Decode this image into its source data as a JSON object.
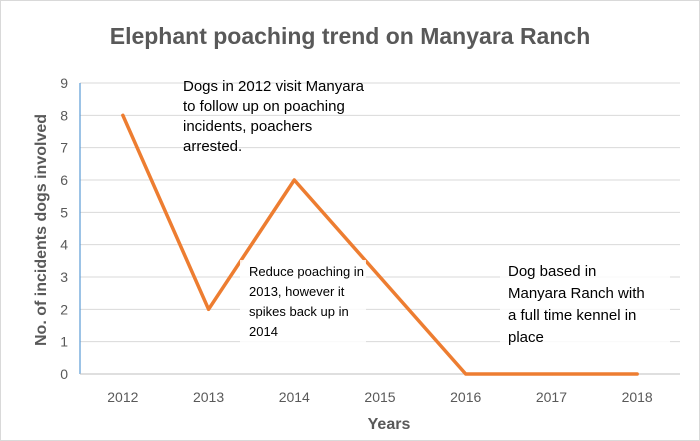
{
  "chart_data": {
    "type": "line",
    "title": "Elephant poaching trend on Manyara Ranch",
    "xlabel": "Years",
    "ylabel": "No. of incidents dogs involved",
    "categories": [
      "2012",
      "2013",
      "2014",
      "2015",
      "2016",
      "2017",
      "2018"
    ],
    "series": [
      {
        "values": [
          8,
          2,
          6,
          3,
          0,
          0,
          0
        ]
      }
    ],
    "ylim": [
      0,
      9
    ],
    "yticks": [
      "0",
      "1",
      "2",
      "3",
      "4",
      "5",
      "6",
      "7",
      "8",
      "9"
    ],
    "grid": true,
    "legend": "none",
    "colors": {
      "line": "#ed7d31",
      "grid": "#d9d9d9",
      "axis": "#bfbfbf",
      "text": "#595959"
    },
    "annotations": [
      {
        "lines": [
          "Dogs in 2012 visit Manyara",
          "to follow up on poaching",
          "incidents, poachers",
          "arrested."
        ]
      },
      {
        "lines": [
          "Reduce poaching in",
          "2013, however it",
          "spikes back up in",
          "2014"
        ]
      },
      {
        "lines": [
          "Dog based in",
          "Manyara Ranch with",
          "a full time kennel in",
          "place"
        ]
      }
    ]
  }
}
